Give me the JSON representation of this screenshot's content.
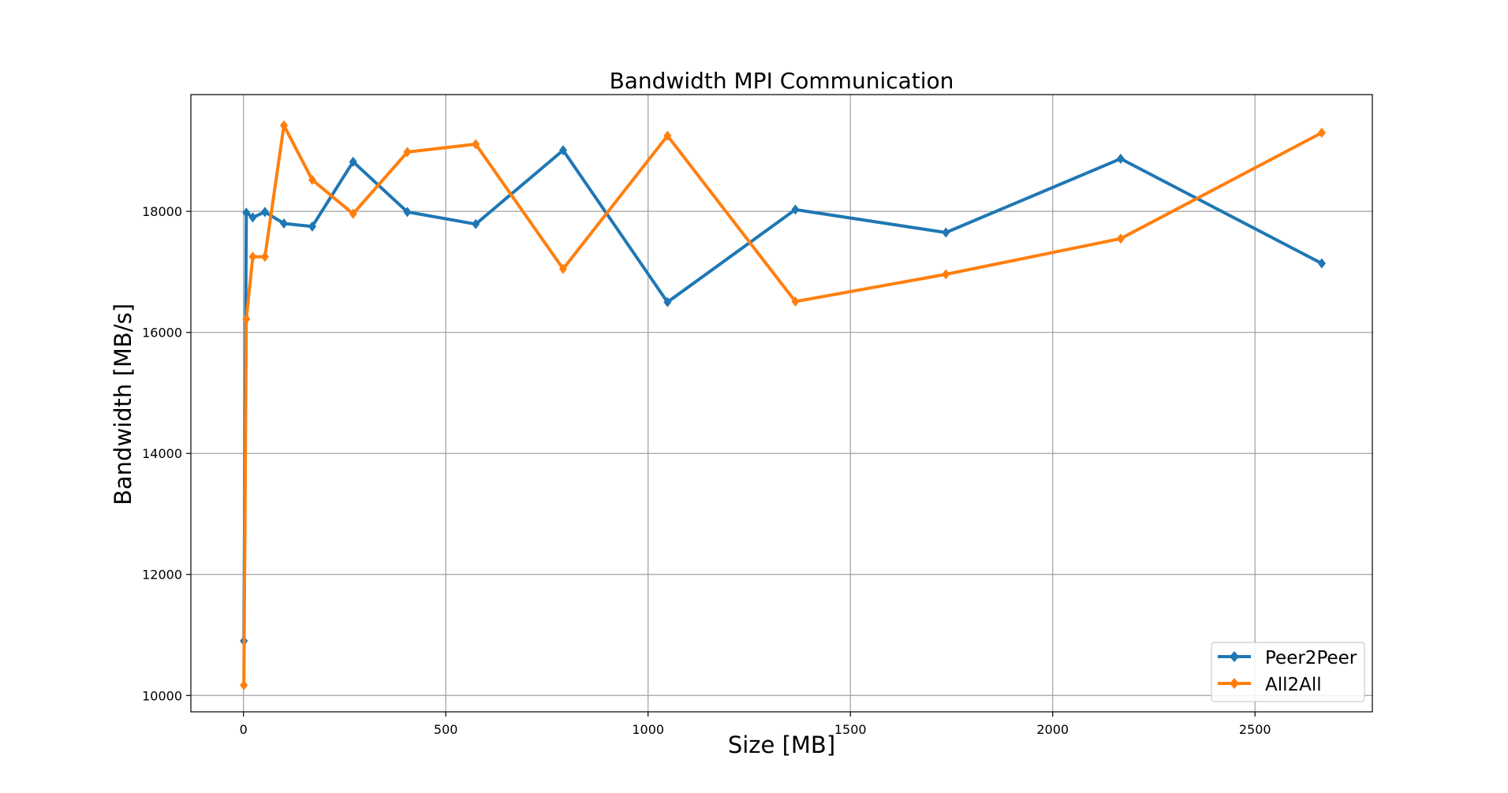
{
  "chart_data": {
    "type": "line",
    "title": "Bandwidth MPI Communication",
    "xlabel": "Size [MB]",
    "ylabel": "Bandwidth [MB/s]",
    "xlim": [
      -130,
      2790
    ],
    "ylim": [
      9730,
      19930
    ],
    "xticks": [
      0,
      500,
      1000,
      1500,
      2000,
      2500
    ],
    "yticks": [
      10000,
      12000,
      14000,
      16000,
      18000
    ],
    "grid": true,
    "legend": {
      "location": "lower right",
      "entries": [
        "Peer2Peer",
        "All2All"
      ]
    },
    "series": [
      {
        "name": "Peer2Peer",
        "color": "#1f77b4",
        "marker": "diamond",
        "x": [
          1,
          7,
          23,
          53,
          100,
          170,
          271,
          405,
          574,
          790,
          1048,
          1364,
          1736,
          2168,
          2665
        ],
        "y": [
          10900,
          17980,
          17900,
          17990,
          17800,
          17750,
          18820,
          17990,
          17790,
          19010,
          16500,
          18030,
          17650,
          18870,
          17140
        ]
      },
      {
        "name": "All2All",
        "color": "#ff7f0e",
        "marker": "diamond",
        "x": [
          1,
          7,
          23,
          53,
          100,
          170,
          271,
          405,
          574,
          790,
          1048,
          1364,
          1736,
          2168,
          2665
        ],
        "y": [
          10170,
          16220,
          17250,
          17250,
          19420,
          18520,
          17960,
          18980,
          19110,
          17050,
          19250,
          16510,
          16960,
          17550,
          19300
        ]
      }
    ]
  }
}
